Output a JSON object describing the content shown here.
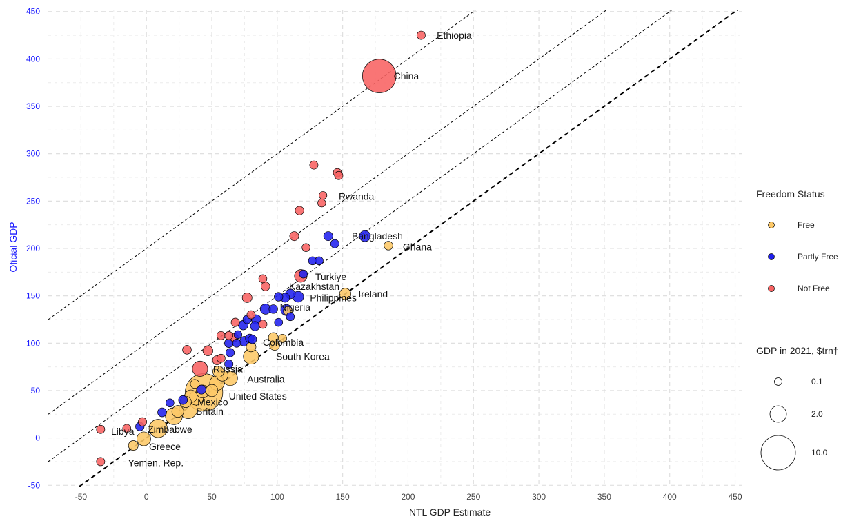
{
  "chart_data": {
    "type": "scatter",
    "title": "",
    "xlabel": "NTL GDP Estimate",
    "ylabel": "Oficial GDP",
    "xlim": [
      -75,
      455
    ],
    "ylim": [
      -52,
      452
    ],
    "xticks": [
      -50,
      0,
      50,
      100,
      150,
      200,
      250,
      300,
      350,
      400,
      450
    ],
    "yticks": [
      -50,
      0,
      50,
      100,
      150,
      200,
      250,
      300,
      350,
      400,
      450
    ],
    "grid": true,
    "colors": {
      "Free": "#fdc867",
      "Partly Free": "#2020ee",
      "Not Free": "#f86262"
    },
    "reference_lines": [
      {
        "intercept": 0,
        "slope": 1,
        "style": "dashed-bold"
      },
      {
        "intercept": 50,
        "slope": 1,
        "style": "dashed"
      },
      {
        "intercept": 100,
        "slope": 1,
        "style": "dashed"
      },
      {
        "intercept": 200,
        "slope": 1,
        "style": "dashed"
      }
    ],
    "legend": {
      "placement": "right",
      "color_title": "Freedom Status",
      "color_entries": [
        "Free",
        "Partly Free",
        "Not Free"
      ],
      "size_title": "GDP in 2021, $trn†",
      "size_entries": [
        {
          "label": "0.1",
          "value": 0.1
        },
        {
          "label": "2.0",
          "value": 2.0
        },
        {
          "label": "10.0",
          "value": 10.0
        }
      ]
    },
    "points": [
      {
        "x": 210,
        "y": 425,
        "size": 0.05,
        "status": "Not Free",
        "label": "Ethiopia"
      },
      {
        "x": 178,
        "y": 382,
        "size": 17.7,
        "status": "Not Free",
        "label": "China"
      },
      {
        "x": 128,
        "y": 288,
        "size": 0.05,
        "status": "Not Free",
        "label": ""
      },
      {
        "x": 146,
        "y": 280,
        "size": 0.05,
        "status": "Not Free",
        "label": ""
      },
      {
        "x": 147,
        "y": 277,
        "size": 0.05,
        "status": "Not Free",
        "label": ""
      },
      {
        "x": 135,
        "y": 256,
        "size": 0.02,
        "status": "Not Free",
        "label": "Rwanda"
      },
      {
        "x": 134,
        "y": 248,
        "size": 0.03,
        "status": "Not Free",
        "label": ""
      },
      {
        "x": 117,
        "y": 240,
        "size": 0.07,
        "status": "Not Free",
        "label": ""
      },
      {
        "x": 113,
        "y": 213,
        "size": 0.12,
        "status": "Not Free",
        "label": ""
      },
      {
        "x": 122,
        "y": 201,
        "size": 0.03,
        "status": "Not Free",
        "label": ""
      },
      {
        "x": 139,
        "y": 213,
        "size": 0.12,
        "status": "Partly Free",
        "label": ""
      },
      {
        "x": 144,
        "y": 205,
        "size": 0.06,
        "status": "Partly Free",
        "label": ""
      },
      {
        "x": 167,
        "y": 213,
        "size": 0.42,
        "status": "Partly Free",
        "label": "Bangladesh"
      },
      {
        "x": 185,
        "y": 203,
        "size": 0.08,
        "status": "Free",
        "label": "Ghana"
      },
      {
        "x": 127,
        "y": 187,
        "size": 0.04,
        "status": "Partly Free",
        "label": ""
      },
      {
        "x": 132,
        "y": 187,
        "size": 0.04,
        "status": "Partly Free",
        "label": ""
      },
      {
        "x": 118,
        "y": 171,
        "size": 0.82,
        "status": "Not Free",
        "label": "Turkiye"
      },
      {
        "x": 120,
        "y": 173,
        "size": 0.04,
        "status": "Partly Free",
        "label": ""
      },
      {
        "x": 89,
        "y": 168,
        "size": 0.04,
        "status": "Not Free",
        "label": ""
      },
      {
        "x": 91,
        "y": 160,
        "size": 0.1,
        "status": "Not Free",
        "label": ""
      },
      {
        "x": 152,
        "y": 152,
        "size": 0.5,
        "status": "Free",
        "label": "Ireland"
      },
      {
        "x": 110,
        "y": 152,
        "size": 0.2,
        "status": "Partly Free",
        "label": "Kazakhstan"
      },
      {
        "x": 116,
        "y": 149,
        "size": 0.4,
        "status": "Partly Free",
        "label": "Philippines"
      },
      {
        "x": 101,
        "y": 149,
        "size": 0.08,
        "status": "Partly Free",
        "label": ""
      },
      {
        "x": 106,
        "y": 148,
        "size": 0.12,
        "status": "Partly Free",
        "label": ""
      },
      {
        "x": 77,
        "y": 148,
        "size": 0.2,
        "status": "Not Free",
        "label": ""
      },
      {
        "x": 91,
        "y": 136,
        "size": 0.3,
        "status": "Partly Free",
        "label": ""
      },
      {
        "x": 97,
        "y": 136,
        "size": 0.08,
        "status": "Partly Free",
        "label": ""
      },
      {
        "x": 107,
        "y": 135,
        "size": 0.44,
        "status": "Partly Free",
        "label": "Nigeria"
      },
      {
        "x": 108,
        "y": 134,
        "size": 0.08,
        "status": "Free",
        "label": ""
      },
      {
        "x": 110,
        "y": 128,
        "size": 0.04,
        "status": "Partly Free",
        "label": ""
      },
      {
        "x": 80,
        "y": 130,
        "size": 0.05,
        "status": "Not Free",
        "label": ""
      },
      {
        "x": 77,
        "y": 125,
        "size": 0.06,
        "status": "Partly Free",
        "label": ""
      },
      {
        "x": 84,
        "y": 125,
        "size": 0.16,
        "status": "Partly Free",
        "label": ""
      },
      {
        "x": 68,
        "y": 122,
        "size": 0.06,
        "status": "Not Free",
        "label": ""
      },
      {
        "x": 74,
        "y": 119,
        "size": 0.16,
        "status": "Partly Free",
        "label": ""
      },
      {
        "x": 83,
        "y": 118,
        "size": 0.14,
        "status": "Partly Free",
        "label": ""
      },
      {
        "x": 89,
        "y": 120,
        "size": 0.05,
        "status": "Not Free",
        "label": ""
      },
      {
        "x": 101,
        "y": 122,
        "size": 0.04,
        "status": "Partly Free",
        "label": ""
      },
      {
        "x": 57,
        "y": 108,
        "size": 0.05,
        "status": "Not Free",
        "label": ""
      },
      {
        "x": 63,
        "y": 108,
        "size": 0.04,
        "status": "Not Free",
        "label": ""
      },
      {
        "x": 70,
        "y": 109,
        "size": 0.03,
        "status": "Partly Free",
        "label": ""
      },
      {
        "x": 67,
        "y": 106,
        "size": 0.05,
        "status": "Not Free",
        "label": ""
      },
      {
        "x": 79,
        "y": 105,
        "size": 0.08,
        "status": "Partly Free",
        "label": ""
      },
      {
        "x": 81,
        "y": 104,
        "size": 0.06,
        "status": "Partly Free",
        "label": ""
      },
      {
        "x": 97,
        "y": 106,
        "size": 0.2,
        "status": "Free",
        "label": ""
      },
      {
        "x": 104,
        "y": 105,
        "size": 0.06,
        "status": "Free",
        "label": ""
      },
      {
        "x": 63,
        "y": 100,
        "size": 0.08,
        "status": "Partly Free",
        "label": ""
      },
      {
        "x": 69,
        "y": 100,
        "size": 0.04,
        "status": "Partly Free",
        "label": ""
      },
      {
        "x": 75,
        "y": 102,
        "size": 0.2,
        "status": "Partly Free",
        "label": ""
      },
      {
        "x": 98,
        "y": 98,
        "size": 0.31,
        "status": "Free",
        "label": "Colombia"
      },
      {
        "x": 80,
        "y": 96,
        "size": 0.2,
        "status": "Free",
        "label": ""
      },
      {
        "x": 31,
        "y": 93,
        "size": 0.09,
        "status": "Not Free",
        "label": ""
      },
      {
        "x": 47,
        "y": 92,
        "size": 0.24,
        "status": "Not Free",
        "label": ""
      },
      {
        "x": 64,
        "y": 90,
        "size": 0.07,
        "status": "Partly Free",
        "label": ""
      },
      {
        "x": 80,
        "y": 86,
        "size": 1.8,
        "status": "Free",
        "label": "South Korea"
      },
      {
        "x": 57,
        "y": 84,
        "size": 0.05,
        "status": "Not Free",
        "label": ""
      },
      {
        "x": 54,
        "y": 82,
        "size": 0.12,
        "status": "Not Free",
        "label": ""
      },
      {
        "x": 63,
        "y": 78,
        "size": 0.06,
        "status": "Partly Free",
        "label": ""
      },
      {
        "x": 41,
        "y": 73,
        "size": 1.78,
        "status": "Not Free",
        "label": "Russia"
      },
      {
        "x": 55,
        "y": 70,
        "size": 0.45,
        "status": "Free",
        "label": ""
      },
      {
        "x": 64,
        "y": 63,
        "size": 1.55,
        "status": "Free",
        "label": "Australia"
      },
      {
        "x": 58,
        "y": 66,
        "size": 0.5,
        "status": "Free",
        "label": ""
      },
      {
        "x": 37,
        "y": 57,
        "size": 0.1,
        "status": "Free",
        "label": ""
      },
      {
        "x": 54,
        "y": 58,
        "size": 1.5,
        "status": "Free",
        "label": ""
      },
      {
        "x": 50,
        "y": 50,
        "size": 0.7,
        "status": "Free",
        "label": ""
      },
      {
        "x": 43,
        "y": 49,
        "size": 0.9,
        "status": "Free",
        "label": ""
      },
      {
        "x": 42,
        "y": 51,
        "size": 0.12,
        "status": "Partly Free",
        "label": ""
      },
      {
        "x": 44,
        "y": 48,
        "size": 23.3,
        "status": "Free",
        "label": "United States"
      },
      {
        "x": 34,
        "y": 44,
        "size": 0.8,
        "status": "Free",
        "label": ""
      },
      {
        "x": 38,
        "y": 42,
        "size": 1.3,
        "status": "Free",
        "label": "Mexico"
      },
      {
        "x": 30,
        "y": 38,
        "size": 0.5,
        "status": "Free",
        "label": ""
      },
      {
        "x": 28,
        "y": 40,
        "size": 0.1,
        "status": "Partly Free",
        "label": ""
      },
      {
        "x": 18,
        "y": 37,
        "size": 0.04,
        "status": "Partly Free",
        "label": ""
      },
      {
        "x": 32,
        "y": 30,
        "size": 3.1,
        "status": "Free",
        "label": "Britain"
      },
      {
        "x": 24,
        "y": 28,
        "size": 0.6,
        "status": "Free",
        "label": ""
      },
      {
        "x": 12,
        "y": 27,
        "size": 0.1,
        "status": "Partly Free",
        "label": ""
      },
      {
        "x": 21,
        "y": 23,
        "size": 2.5,
        "status": "Free",
        "label": ""
      },
      {
        "x": -3,
        "y": 17,
        "size": 0.06,
        "status": "Not Free",
        "label": ""
      },
      {
        "x": -5,
        "y": 12,
        "size": 0.07,
        "status": "Partly Free",
        "label": ""
      },
      {
        "x": 9,
        "y": 10,
        "size": 3.2,
        "status": "Free",
        "label": "Zimbabwe"
      },
      {
        "x": -15,
        "y": 10,
        "size": 0.04,
        "status": "Not Free",
        "label": ""
      },
      {
        "x": -35,
        "y": 9,
        "size": 0.05,
        "status": "Not Free",
        "label": "Libya"
      },
      {
        "x": -2,
        "y": -1,
        "size": 1.2,
        "status": "Free",
        "label": ""
      },
      {
        "x": -10,
        "y": -8,
        "size": 0.2,
        "status": "Free",
        "label": "Greece"
      },
      {
        "x": -35,
        "y": -25,
        "size": 0.05,
        "status": "Not Free",
        "label": "Yemen, Rep."
      }
    ],
    "labels": [
      {
        "text": "Ethiopia",
        "x": 222,
        "y": 425
      },
      {
        "text": "China",
        "x": 189,
        "y": 382
      },
      {
        "text": "Rwanda",
        "x": 147,
        "y": 255
      },
      {
        "text": "Bangladesh",
        "x": 157,
        "y": 213
      },
      {
        "text": "Ghana",
        "x": 196,
        "y": 202
      },
      {
        "text": "Turkiye",
        "x": 129,
        "y": 170
      },
      {
        "text": "Ireland",
        "x": 162,
        "y": 152
      },
      {
        "text": "Kazakhstan",
        "x": 109,
        "y": 160
      },
      {
        "text": "Philippines",
        "x": 125,
        "y": 148
      },
      {
        "text": "Nigeria",
        "x": 102,
        "y": 138
      },
      {
        "text": "Colombia",
        "x": 89,
        "y": 101
      },
      {
        "text": "South Korea",
        "x": 99,
        "y": 86
      },
      {
        "text": "Russia",
        "x": 51,
        "y": 73
      },
      {
        "text": "Australia",
        "x": 77,
        "y": 62
      },
      {
        "text": "United States",
        "x": 63,
        "y": 44
      },
      {
        "text": "Mexico",
        "x": 39,
        "y": 38
      },
      {
        "text": "Britain",
        "x": 38,
        "y": 28
      },
      {
        "text": "Zimbabwe",
        "x": 1,
        "y": 9
      },
      {
        "text": "Libya",
        "x": -27,
        "y": 7
      },
      {
        "text": "Greece",
        "x": 2,
        "y": -9
      },
      {
        "text": "Yemen, Rep.",
        "x": -14,
        "y": -26
      }
    ]
  }
}
